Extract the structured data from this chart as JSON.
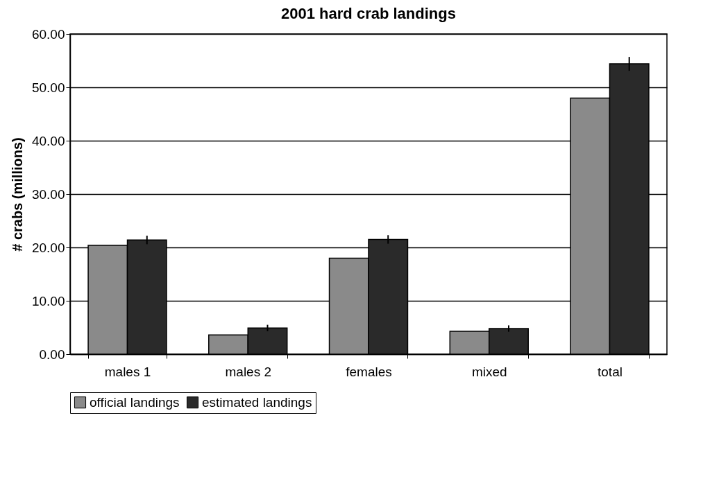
{
  "chart_data": {
    "type": "bar",
    "title": "2001 hard crab landings",
    "ylabel": "# crabs (millions)",
    "categories": [
      "males 1",
      "males 2",
      "females",
      "mixed",
      "total"
    ],
    "series": [
      {
        "name": "official landings",
        "color": "#8a8a8a",
        "values": [
          20.4,
          3.6,
          18.0,
          4.3,
          48.0
        ]
      },
      {
        "name": "estimated landings",
        "color": "#2a2a2a",
        "values": [
          21.4,
          4.9,
          21.5,
          4.8,
          54.4
        ],
        "errors": [
          0.8,
          0.6,
          0.8,
          0.6,
          1.3
        ]
      }
    ],
    "ylim": [
      0,
      60
    ],
    "yticks": [
      {
        "value": 0,
        "label": "0.00"
      },
      {
        "value": 10,
        "label": "10.00"
      },
      {
        "value": 20,
        "label": "20.00"
      },
      {
        "value": 30,
        "label": "30.00"
      },
      {
        "value": 40,
        "label": "40.00"
      },
      {
        "value": 50,
        "label": "50.00"
      },
      {
        "value": 60,
        "label": "60.00"
      }
    ],
    "grid": "y",
    "legend": "bottom"
  }
}
